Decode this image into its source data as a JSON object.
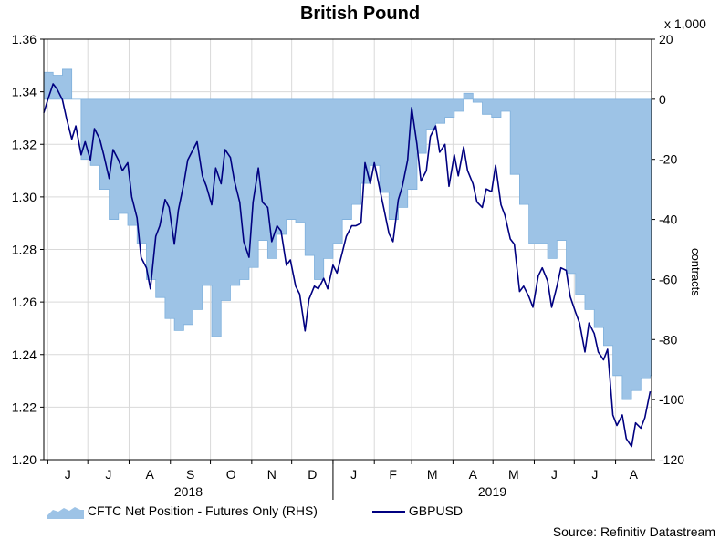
{
  "chart_data": {
    "type": "area+line",
    "title": "British Pound",
    "source": "Source: Refinitiv Datastream",
    "left_axis": {
      "min": 1.2,
      "max": 1.36,
      "ticks": [
        "1.20",
        "1.22",
        "1.24",
        "1.26",
        "1.28",
        "1.30",
        "1.32",
        "1.34",
        "1.36"
      ]
    },
    "right_axis": {
      "min": -120,
      "max": 20,
      "unit": "x 1,000",
      "label": "contracts",
      "ticks": [
        "-120",
        "-100",
        "-80",
        "-60",
        "-40",
        "-20",
        "0",
        "20"
      ]
    },
    "x_months": [
      "J",
      "J",
      "A",
      "S",
      "O",
      "N",
      "D",
      "J",
      "F",
      "M",
      "A",
      "M",
      "J",
      "J",
      "A"
    ],
    "x_years": [
      "2018",
      "2019"
    ],
    "grid": true,
    "series": [
      {
        "name": "CFTC Net Position - Futures Only (RHS)",
        "kind": "area",
        "color": "#9dc3e6",
        "points": [
          [
            "2018-05-29",
            9
          ],
          [
            "2018-06-05",
            8
          ],
          [
            "2018-06-12",
            10
          ],
          [
            "2018-06-19",
            0
          ],
          [
            "2018-06-26",
            -20
          ],
          [
            "2018-07-03",
            -22
          ],
          [
            "2018-07-10",
            -30
          ],
          [
            "2018-07-17",
            -40
          ],
          [
            "2018-07-24",
            -38
          ],
          [
            "2018-07-31",
            -42
          ],
          [
            "2018-08-07",
            -48
          ],
          [
            "2018-08-14",
            -60
          ],
          [
            "2018-08-21",
            -66
          ],
          [
            "2018-08-28",
            -73
          ],
          [
            "2018-09-04",
            -77
          ],
          [
            "2018-09-11",
            -75
          ],
          [
            "2018-09-18",
            -70
          ],
          [
            "2018-09-25",
            -62
          ],
          [
            "2018-10-02",
            -79
          ],
          [
            "2018-10-09",
            -67
          ],
          [
            "2018-10-16",
            -62
          ],
          [
            "2018-10-23",
            -60
          ],
          [
            "2018-10-30",
            -56
          ],
          [
            "2018-11-06",
            -47
          ],
          [
            "2018-11-13",
            -53
          ],
          [
            "2018-11-20",
            -45
          ],
          [
            "2018-11-27",
            -40
          ],
          [
            "2018-12-04",
            -41
          ],
          [
            "2018-12-11",
            -52
          ],
          [
            "2018-12-18",
            -60
          ],
          [
            "2018-12-25",
            -53
          ],
          [
            "2019-01-01",
            -48
          ],
          [
            "2019-01-08",
            -40
          ],
          [
            "2019-01-15",
            -35
          ],
          [
            "2019-01-22",
            -28
          ],
          [
            "2019-01-29",
            -22
          ],
          [
            "2019-02-05",
            -31
          ],
          [
            "2019-02-12",
            -40
          ],
          [
            "2019-02-19",
            -36
          ],
          [
            "2019-02-26",
            -30
          ],
          [
            "2019-03-05",
            -18
          ],
          [
            "2019-03-12",
            -10
          ],
          [
            "2019-03-19",
            -8
          ],
          [
            "2019-03-26",
            -6
          ],
          [
            "2019-04-02",
            -4
          ],
          [
            "2019-04-09",
            2
          ],
          [
            "2019-04-16",
            -1
          ],
          [
            "2019-04-23",
            -5
          ],
          [
            "2019-04-30",
            -6
          ],
          [
            "2019-05-07",
            -4
          ],
          [
            "2019-05-14",
            -25
          ],
          [
            "2019-05-21",
            -35
          ],
          [
            "2019-05-28",
            -48
          ],
          [
            "2019-06-04",
            -48
          ],
          [
            "2019-06-11",
            -53
          ],
          [
            "2019-06-18",
            -47
          ],
          [
            "2019-06-25",
            -58
          ],
          [
            "2019-07-02",
            -65
          ],
          [
            "2019-07-09",
            -70
          ],
          [
            "2019-07-16",
            -76
          ],
          [
            "2019-07-23",
            -82
          ],
          [
            "2019-07-30",
            -92
          ],
          [
            "2019-08-06",
            -100
          ],
          [
            "2019-08-13",
            -97
          ],
          [
            "2019-08-20",
            -93
          ],
          [
            "2019-08-27",
            -92
          ]
        ]
      },
      {
        "name": "GBPUSD",
        "kind": "line",
        "color": "#000080",
        "points": [
          [
            "2018-05-29",
            1.332
          ],
          [
            "2018-06-01",
            1.337
          ],
          [
            "2018-06-05",
            1.343
          ],
          [
            "2018-06-08",
            1.341
          ],
          [
            "2018-06-12",
            1.337
          ],
          [
            "2018-06-15",
            1.33
          ],
          [
            "2018-06-19",
            1.322
          ],
          [
            "2018-06-22",
            1.327
          ],
          [
            "2018-06-26",
            1.316
          ],
          [
            "2018-06-29",
            1.321
          ],
          [
            "2018-07-03",
            1.314
          ],
          [
            "2018-07-06",
            1.326
          ],
          [
            "2018-07-10",
            1.322
          ],
          [
            "2018-07-13",
            1.316
          ],
          [
            "2018-07-17",
            1.307
          ],
          [
            "2018-07-20",
            1.318
          ],
          [
            "2018-07-24",
            1.314
          ],
          [
            "2018-07-27",
            1.31
          ],
          [
            "2018-07-31",
            1.313
          ],
          [
            "2018-08-03",
            1.3
          ],
          [
            "2018-08-07",
            1.292
          ],
          [
            "2018-08-10",
            1.277
          ],
          [
            "2018-08-14",
            1.273
          ],
          [
            "2018-08-17",
            1.265
          ],
          [
            "2018-08-21",
            1.285
          ],
          [
            "2018-08-24",
            1.289
          ],
          [
            "2018-08-28",
            1.299
          ],
          [
            "2018-08-31",
            1.296
          ],
          [
            "2018-09-04",
            1.282
          ],
          [
            "2018-09-07",
            1.295
          ],
          [
            "2018-09-11",
            1.305
          ],
          [
            "2018-09-14",
            1.314
          ],
          [
            "2018-09-18",
            1.318
          ],
          [
            "2018-09-21",
            1.321
          ],
          [
            "2018-09-25",
            1.308
          ],
          [
            "2018-09-28",
            1.304
          ],
          [
            "2018-10-02",
            1.297
          ],
          [
            "2018-10-05",
            1.311
          ],
          [
            "2018-10-09",
            1.305
          ],
          [
            "2018-10-12",
            1.318
          ],
          [
            "2018-10-16",
            1.315
          ],
          [
            "2018-10-19",
            1.306
          ],
          [
            "2018-10-23",
            1.298
          ],
          [
            "2018-10-26",
            1.283
          ],
          [
            "2018-10-30",
            1.277
          ],
          [
            "2018-11-02",
            1.298
          ],
          [
            "2018-11-06",
            1.311
          ],
          [
            "2018-11-09",
            1.298
          ],
          [
            "2018-11-13",
            1.296
          ],
          [
            "2018-11-16",
            1.283
          ],
          [
            "2018-11-20",
            1.289
          ],
          [
            "2018-11-23",
            1.287
          ],
          [
            "2018-11-27",
            1.274
          ],
          [
            "2018-11-30",
            1.276
          ],
          [
            "2018-12-04",
            1.266
          ],
          [
            "2018-12-07",
            1.263
          ],
          [
            "2018-12-11",
            1.249
          ],
          [
            "2018-12-14",
            1.261
          ],
          [
            "2018-12-18",
            1.266
          ],
          [
            "2018-12-21",
            1.265
          ],
          [
            "2018-12-25",
            1.269
          ],
          [
            "2018-12-28",
            1.265
          ],
          [
            "2019-01-01",
            1.274
          ],
          [
            "2019-01-04",
            1.271
          ],
          [
            "2019-01-08",
            1.279
          ],
          [
            "2019-01-11",
            1.285
          ],
          [
            "2019-01-15",
            1.289
          ],
          [
            "2019-01-18",
            1.289
          ],
          [
            "2019-01-22",
            1.29
          ],
          [
            "2019-01-25",
            1.313
          ],
          [
            "2019-01-29",
            1.305
          ],
          [
            "2019-02-01",
            1.313
          ],
          [
            "2019-02-05",
            1.303
          ],
          [
            "2019-02-08",
            1.296
          ],
          [
            "2019-02-12",
            1.286
          ],
          [
            "2019-02-15",
            1.283
          ],
          [
            "2019-02-19",
            1.299
          ],
          [
            "2019-02-22",
            1.304
          ],
          [
            "2019-02-26",
            1.314
          ],
          [
            "2019-03-01",
            1.334
          ],
          [
            "2019-03-05",
            1.32
          ],
          [
            "2019-03-08",
            1.306
          ],
          [
            "2019-03-12",
            1.31
          ],
          [
            "2019-03-15",
            1.323
          ],
          [
            "2019-03-19",
            1.327
          ],
          [
            "2019-03-22",
            1.317
          ],
          [
            "2019-03-26",
            1.32
          ],
          [
            "2019-03-29",
            1.304
          ],
          [
            "2019-04-02",
            1.316
          ],
          [
            "2019-04-05",
            1.308
          ],
          [
            "2019-04-09",
            1.319
          ],
          [
            "2019-04-12",
            1.31
          ],
          [
            "2019-04-16",
            1.305
          ],
          [
            "2019-04-19",
            1.298
          ],
          [
            "2019-04-23",
            1.296
          ],
          [
            "2019-04-26",
            1.303
          ],
          [
            "2019-04-30",
            1.302
          ],
          [
            "2019-05-03",
            1.312
          ],
          [
            "2019-05-07",
            1.297
          ],
          [
            "2019-05-10",
            1.293
          ],
          [
            "2019-05-14",
            1.284
          ],
          [
            "2019-05-17",
            1.282
          ],
          [
            "2019-05-21",
            1.264
          ],
          [
            "2019-05-24",
            1.266
          ],
          [
            "2019-05-28",
            1.262
          ],
          [
            "2019-05-31",
            1.258
          ],
          [
            "2019-06-04",
            1.27
          ],
          [
            "2019-06-07",
            1.273
          ],
          [
            "2019-06-11",
            1.268
          ],
          [
            "2019-06-14",
            1.258
          ],
          [
            "2019-06-18",
            1.266
          ],
          [
            "2019-06-21",
            1.273
          ],
          [
            "2019-06-25",
            1.272
          ],
          [
            "2019-06-28",
            1.262
          ],
          [
            "2019-07-02",
            1.256
          ],
          [
            "2019-07-05",
            1.252
          ],
          [
            "2019-07-09",
            1.241
          ],
          [
            "2019-07-12",
            1.252
          ],
          [
            "2019-07-16",
            1.248
          ],
          [
            "2019-07-19",
            1.241
          ],
          [
            "2019-07-23",
            1.238
          ],
          [
            "2019-07-26",
            1.242
          ],
          [
            "2019-07-30",
            1.217
          ],
          [
            "2019-08-02",
            1.213
          ],
          [
            "2019-08-06",
            1.217
          ],
          [
            "2019-08-09",
            1.208
          ],
          [
            "2019-08-13",
            1.205
          ],
          [
            "2019-08-16",
            1.214
          ],
          [
            "2019-08-20",
            1.212
          ],
          [
            "2019-08-23",
            1.216
          ],
          [
            "2019-08-27",
            1.226
          ]
        ]
      }
    ]
  }
}
